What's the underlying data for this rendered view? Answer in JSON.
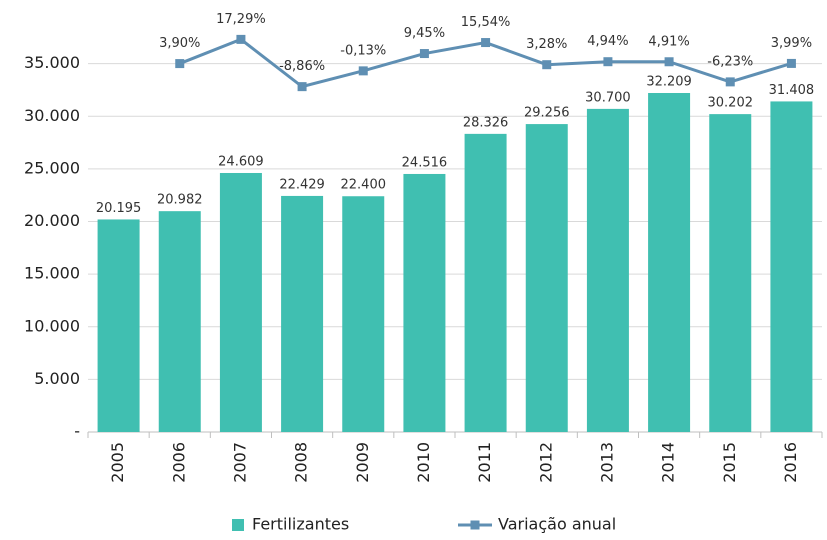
{
  "chart_data": {
    "type": "bar",
    "categories": [
      "2005",
      "2006",
      "2007",
      "2008",
      "2009",
      "2010",
      "2011",
      "2012",
      "2013",
      "2014",
      "2015",
      "2016"
    ],
    "series": [
      {
        "name": "Fertilizantes",
        "type": "bar",
        "color": "#40bfb1",
        "values": [
          20195,
          20982,
          24609,
          22429,
          22400,
          24516,
          28326,
          29256,
          30700,
          32209,
          30202,
          31408
        ],
        "value_labels": [
          "20.195",
          "20.982",
          "24.609",
          "22.429",
          "22.400",
          "24.516",
          "28.326",
          "29.256",
          "30.700",
          "32.209",
          "30.202",
          "31.408"
        ]
      },
      {
        "name": "Variação anual",
        "type": "line",
        "axis": "y2",
        "color": "#5f8fb3",
        "values": [
          null,
          3.9,
          17.29,
          -8.86,
          -0.13,
          9.45,
          15.54,
          3.28,
          4.94,
          4.91,
          -6.23,
          3.99
        ],
        "value_labels": [
          null,
          "3,90%",
          "17,29%",
          "-8,86%",
          "-0,13%",
          "9,45%",
          "15,54%",
          "3,28%",
          "4,94%",
          "4,91%",
          "-6,23%",
          "3,99%"
        ]
      }
    ],
    "ylim": [
      0,
      40000
    ],
    "yticks": [
      {
        "value": 0,
        "label": "-"
      },
      {
        "value": 5000,
        "label": "5.000"
      },
      {
        "value": 10000,
        "label": "10.000"
      },
      {
        "value": 15000,
        "label": "15.000"
      },
      {
        "value": 20000,
        "label": "20.000"
      },
      {
        "value": 25000,
        "label": "25.000"
      },
      {
        "value": 30000,
        "label": "30.000"
      },
      {
        "value": 35000,
        "label": "35.000"
      }
    ],
    "y2lim": [
      -200,
      33
    ],
    "grid": true,
    "legend": "bottom"
  }
}
